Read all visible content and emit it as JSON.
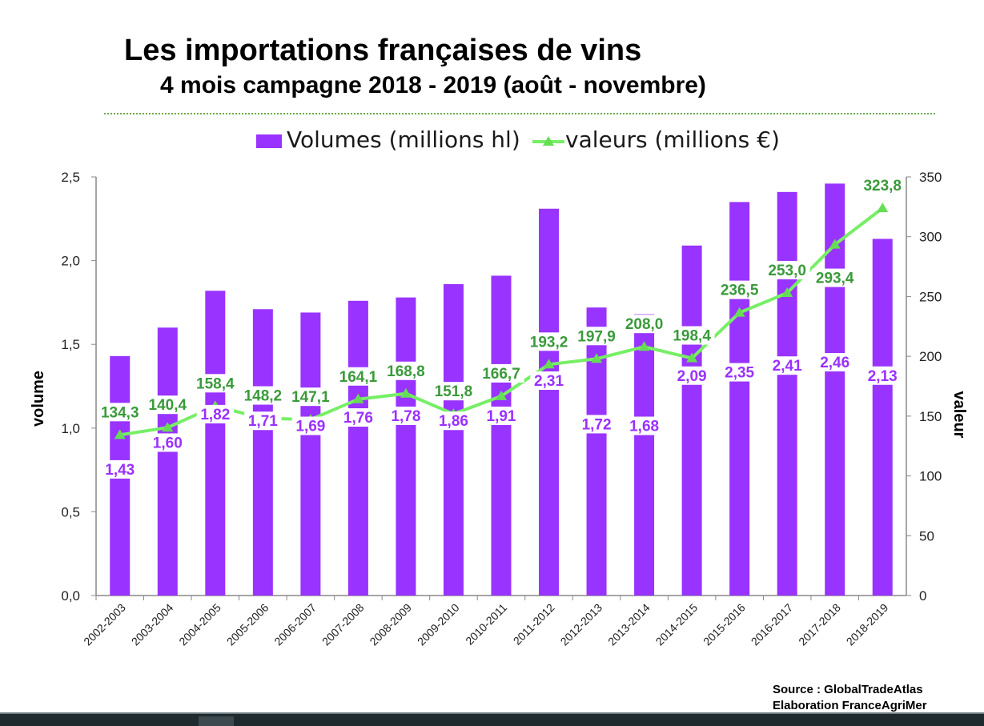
{
  "header": {
    "title": "Les importations françaises de vins",
    "subtitle": "4 mois campagne 2018 - 2019 (août - novembre)"
  },
  "legend": {
    "bar_label": "Volumes (millions hl)",
    "line_label": "valeurs (millions €)"
  },
  "source": {
    "line1": "Source : GlobalTradeAtlas",
    "line2": "Elaboration FranceAgriMer"
  },
  "colors": {
    "bar": "#9933ff",
    "bar_label": "#9b30ff",
    "line": "#77ee66",
    "line_marker": "#66dd55",
    "line_label": "#3a9a3a",
    "axis": "#888888"
  },
  "chart_data": {
    "type": "bar",
    "categories": [
      "2002-2003",
      "2003-2004",
      "2004-2005",
      "2005-2006",
      "2006-2007",
      "2007-2008",
      "2008-2009",
      "2009-2010",
      "2010-2011",
      "2011-2012",
      "2012-2013",
      "2013-2014",
      "2014-2015",
      "2015-2016",
      "2016-2017",
      "2017-2018",
      "2018-2019"
    ],
    "series": [
      {
        "name": "Volumes (millions hl)",
        "type": "bar",
        "axis": "left",
        "values": [
          1.43,
          1.6,
          1.82,
          1.71,
          1.69,
          1.76,
          1.78,
          1.86,
          1.91,
          2.31,
          1.72,
          1.68,
          2.09,
          2.35,
          2.41,
          2.46,
          2.13
        ],
        "labels": [
          "1,43",
          "1,60",
          "1,82",
          "1,71",
          "1,69",
          "1,76",
          "1,78",
          "1,86",
          "1,91",
          "2,31",
          "1,72",
          "1,68",
          "2,09",
          "2,35",
          "2,41",
          "2,46",
          "2,13"
        ]
      },
      {
        "name": "valeurs (millions €)",
        "type": "line",
        "axis": "right",
        "values": [
          134.3,
          140.4,
          158.4,
          148.2,
          147.1,
          164.1,
          168.8,
          151.8,
          166.7,
          193.2,
          197.9,
          208.0,
          198.4,
          236.5,
          253.0,
          293.4,
          323.8
        ],
        "labels": [
          "134,3",
          "140,4",
          "158,4",
          "148,2",
          "147,1",
          "164,1",
          "168,8",
          "151,8",
          "166,7",
          "193,2",
          "197,9",
          "208,0",
          "198,4",
          "236,5",
          "253,0",
          "293,4",
          "323,8"
        ]
      }
    ],
    "ylabel": "volume",
    "y2label": "valeur",
    "ylim": [
      0,
      2.5
    ],
    "y2lim": [
      0,
      350
    ],
    "yticks": [
      "0,0",
      "0,5",
      "1,0",
      "1,5",
      "2,0",
      "2,5"
    ],
    "y2ticks": [
      "0",
      "50",
      "100",
      "150",
      "200",
      "250",
      "300",
      "350"
    ],
    "grid": true,
    "legend_position": "top"
  }
}
